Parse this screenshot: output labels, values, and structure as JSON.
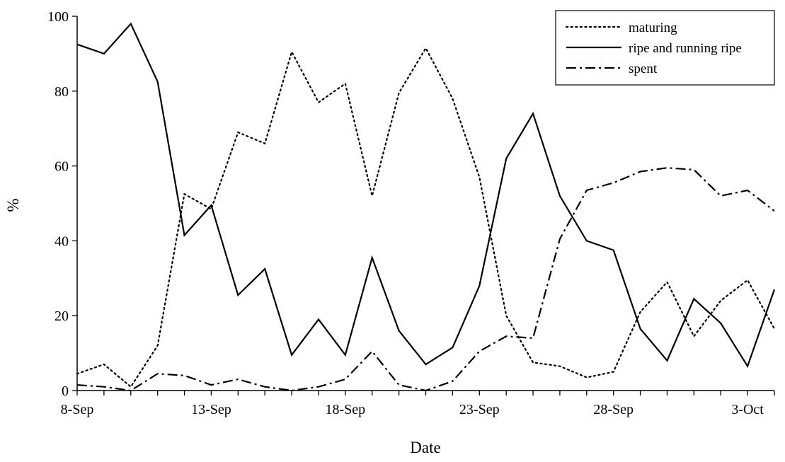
{
  "chart_data": {
    "type": "line",
    "title": "",
    "xlabel": "Date",
    "ylabel": "%",
    "ylim": [
      0,
      100
    ],
    "yticks": [
      0,
      20,
      40,
      60,
      80,
      100
    ],
    "xtick_labels": [
      "8-Sep",
      "13-Sep",
      "18-Sep",
      "23-Sep",
      "28-Sep",
      "3-Oct"
    ],
    "x": [
      "8-Sep",
      "9-Sep",
      "10-Sep",
      "11-Sep",
      "12-Sep",
      "13-Sep",
      "14-Sep",
      "15-Sep",
      "16-Sep",
      "17-Sep",
      "18-Sep",
      "19-Sep",
      "20-Sep",
      "21-Sep",
      "22-Sep",
      "23-Sep",
      "24-Sep",
      "25-Sep",
      "26-Sep",
      "27-Sep",
      "28-Sep",
      "29-Sep",
      "30-Sep",
      "1-Oct",
      "2-Oct",
      "3-Oct",
      "4-Oct"
    ],
    "grid": false,
    "legend_position": "top-right",
    "series": [
      {
        "name": "maturing",
        "style": "dotted",
        "color": "#000000",
        "values": [
          4.5,
          7,
          1,
          12,
          52.5,
          48.5,
          69,
          66,
          90.5,
          77,
          82,
          52,
          79.5,
          91.5,
          78,
          57,
          20,
          7.5,
          6.5,
          3.5,
          5,
          21,
          29,
          14.5,
          24,
          29.5,
          16.5
        ]
      },
      {
        "name": "ripe and running ripe",
        "style": "solid",
        "color": "#000000",
        "values": [
          92.5,
          90,
          98,
          82.5,
          41.5,
          49.5,
          25.5,
          32.5,
          9.5,
          19,
          9.5,
          35.5,
          16,
          7,
          11.5,
          28,
          62,
          74,
          52,
          40,
          37.5,
          16.5,
          8,
          24.5,
          18,
          6.5,
          27
        ]
      },
      {
        "name": "spent",
        "style": "dashdot",
        "color": "#000000",
        "values": [
          1.5,
          1,
          0,
          4.5,
          4,
          1.5,
          3,
          1,
          0,
          1,
          3,
          10.5,
          1.5,
          0,
          2.5,
          10.5,
          14.5,
          14,
          40.5,
          53.5,
          55.5,
          58.5,
          59.5,
          59,
          52,
          53.5,
          48
        ]
      }
    ]
  }
}
